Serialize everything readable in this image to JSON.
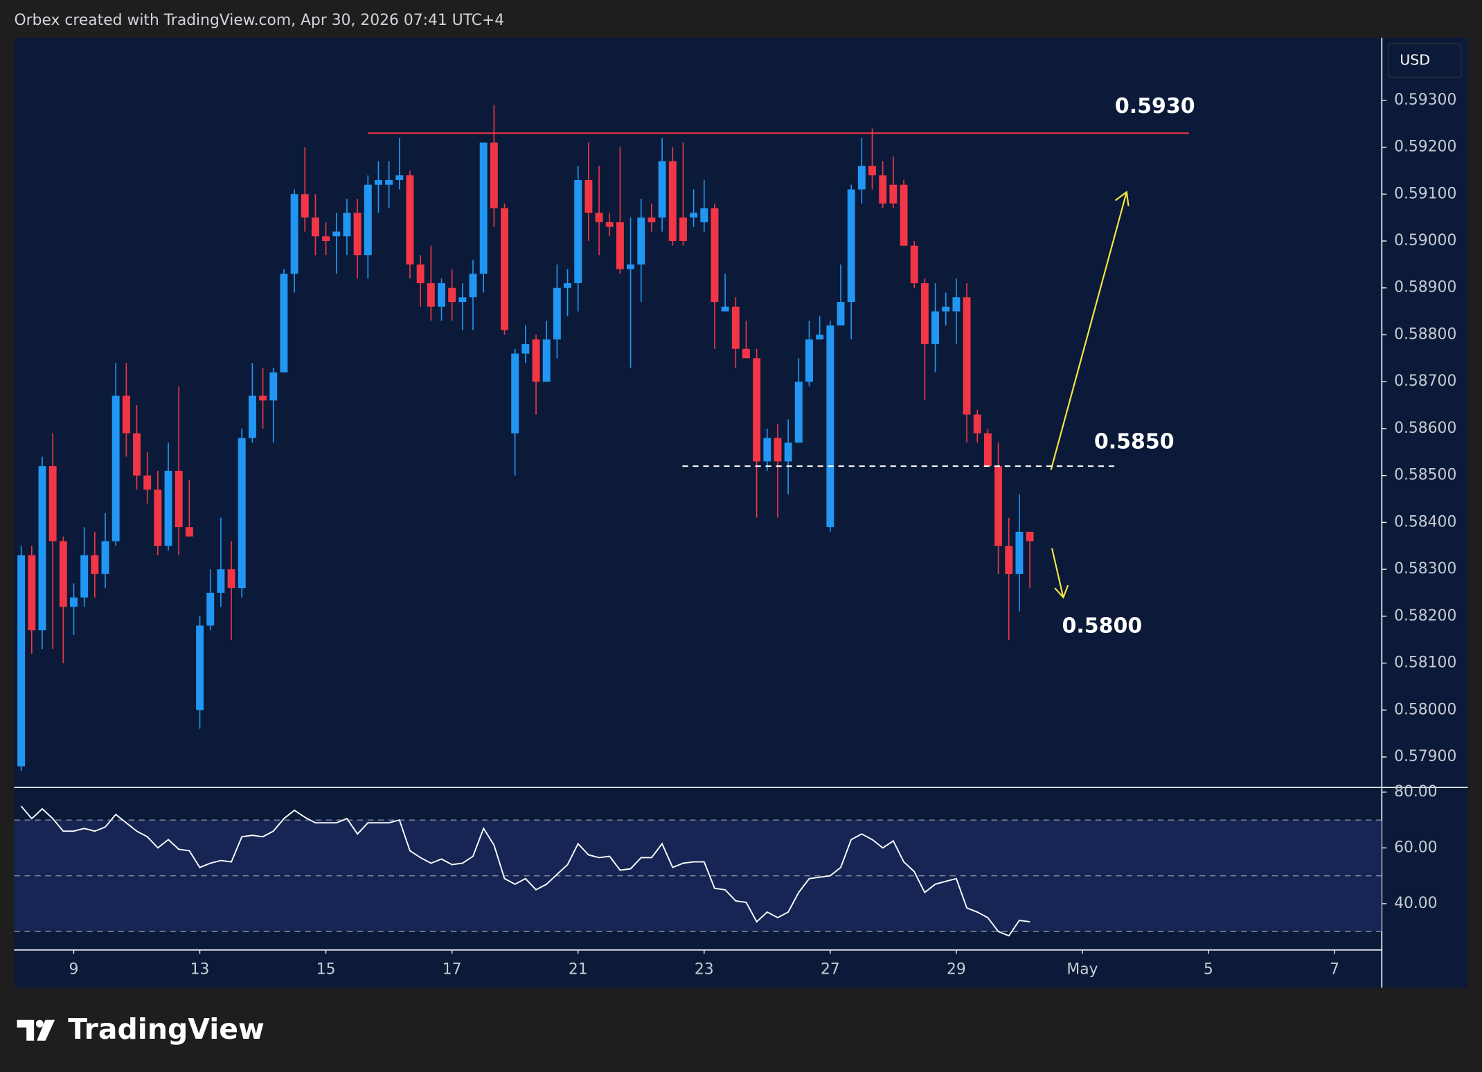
{
  "header": {
    "title": "Orbex created with TradingView.com, Apr 30, 2026 07:41 UTC+4",
    "currency": "USD"
  },
  "footer": {
    "logo": "TradingView"
  },
  "chart_data": [
    {
      "type": "candlestick",
      "up_color": "#2196f3",
      "down_color": "#f23645",
      "xlim": [
        -0.67,
        129.5
      ],
      "ylim": [
        0.57835,
        0.59433
      ],
      "xticks": [
        {
          "value": 5,
          "label": "9"
        },
        {
          "value": 17,
          "label": "13"
        },
        {
          "value": 29,
          "label": "15"
        },
        {
          "value": 41,
          "label": "17"
        },
        {
          "value": 53,
          "label": "21"
        },
        {
          "value": 65,
          "label": "23"
        },
        {
          "value": 77,
          "label": "27"
        },
        {
          "value": 89,
          "label": "29"
        },
        {
          "value": 101,
          "label": "May"
        },
        {
          "value": 113,
          "label": "5"
        },
        {
          "value": 125,
          "label": "7"
        }
      ],
      "yticks": [
        {
          "value": 0.579,
          "label": "0.57900"
        },
        {
          "value": 0.58,
          "label": "0.58000"
        },
        {
          "value": 0.581,
          "label": "0.58100"
        },
        {
          "value": 0.582,
          "label": "0.58200"
        },
        {
          "value": 0.583,
          "label": "0.58300"
        },
        {
          "value": 0.584,
          "label": "0.58400"
        },
        {
          "value": 0.585,
          "label": "0.58500"
        },
        {
          "value": 0.586,
          "label": "0.58600"
        },
        {
          "value": 0.587,
          "label": "0.58700"
        },
        {
          "value": 0.588,
          "label": "0.58800"
        },
        {
          "value": 0.589,
          "label": "0.58900"
        },
        {
          "value": 0.59,
          "label": "0.59000"
        },
        {
          "value": 0.591,
          "label": "0.59100"
        },
        {
          "value": 0.592,
          "label": "0.59200"
        },
        {
          "value": 0.593,
          "label": "0.59300"
        }
      ],
      "grid": false,
      "open": [
        0.5788,
        0.5833,
        0.5817,
        0.5852,
        0.5836,
        0.5822,
        0.5824,
        0.5833,
        0.5829,
        0.5836,
        0.5867,
        0.5859,
        0.585,
        0.5847,
        0.5835,
        0.5851,
        0.5839,
        0.58,
        0.5818,
        0.5825,
        0.583,
        0.5826,
        0.5858,
        0.5867,
        0.5866,
        0.5872,
        0.5893,
        0.591,
        0.5905,
        0.5901,
        0.5901,
        0.5901,
        0.5906,
        0.5897,
        0.5912,
        0.5912,
        0.5913,
        0.5914,
        0.5895,
        0.5891,
        0.5886,
        0.589,
        0.5887,
        0.5888,
        0.5893,
        0.5921,
        0.5907,
        0.5859,
        0.5876,
        0.5879,
        0.587,
        0.5879,
        0.589,
        0.5891,
        0.5913,
        0.5906,
        0.5904,
        0.5904,
        0.5894,
        0.5895,
        0.5905,
        0.5905,
        0.5917,
        0.5905,
        0.5905,
        0.5904,
        0.5907,
        0.5885,
        0.5886,
        0.5877,
        0.5875,
        0.5853,
        0.5858,
        0.5853,
        0.5857,
        0.587,
        0.5879,
        0.5839,
        0.5882,
        0.5887,
        0.5911,
        0.5916,
        0.5914,
        0.5912,
        0.5912,
        0.5899,
        0.5891,
        0.5878,
        0.5885,
        0.5885,
        0.5888,
        0.5863,
        0.5859,
        0.5852,
        0.5835,
        0.5829,
        0.5838
      ],
      "high": [
        0.5835,
        0.5835,
        0.5854,
        0.5859,
        0.5837,
        0.5827,
        0.5839,
        0.5838,
        0.5842,
        0.5874,
        0.5874,
        0.5865,
        0.5855,
        0.5851,
        0.5857,
        0.5869,
        0.5849,
        0.582,
        0.583,
        0.5841,
        0.5836,
        0.586,
        0.5874,
        0.5873,
        0.5873,
        0.5894,
        0.5911,
        0.592,
        0.591,
        0.5904,
        0.5906,
        0.5909,
        0.5909,
        0.5914,
        0.5917,
        0.5917,
        0.5922,
        0.5915,
        0.5897,
        0.5899,
        0.5892,
        0.5894,
        0.5891,
        0.5896,
        0.5921,
        0.5929,
        0.5908,
        0.5877,
        0.5882,
        0.588,
        0.5883,
        0.5895,
        0.5894,
        0.5916,
        0.5921,
        0.5916,
        0.5906,
        0.592,
        0.5905,
        0.5909,
        0.5908,
        0.5922,
        0.592,
        0.5921,
        0.5911,
        0.5913,
        0.5908,
        0.5893,
        0.5888,
        0.5883,
        0.5877,
        0.586,
        0.5861,
        0.5862,
        0.5875,
        0.5883,
        0.5884,
        0.5883,
        0.5895,
        0.5912,
        0.5922,
        0.5924,
        0.5917,
        0.5918,
        0.5913,
        0.59,
        0.5892,
        0.5891,
        0.5889,
        0.5892,
        0.5891,
        0.5864,
        0.586,
        0.5857,
        0.5841,
        0.5846,
        0.5838
      ],
      "low": [
        0.5787,
        0.5812,
        0.5813,
        0.5813,
        0.581,
        0.5816,
        0.5822,
        0.5824,
        0.5826,
        0.5835,
        0.5854,
        0.5847,
        0.5844,
        0.5833,
        0.5834,
        0.5833,
        0.5837,
        0.5796,
        0.5817,
        0.5822,
        0.5815,
        0.5824,
        0.5857,
        0.586,
        0.5857,
        0.5872,
        0.5889,
        0.5902,
        0.5897,
        0.5897,
        0.5893,
        0.5897,
        0.5892,
        0.5892,
        0.5906,
        0.5907,
        0.5911,
        0.5892,
        0.5886,
        0.5883,
        0.5883,
        0.5883,
        0.5881,
        0.5881,
        0.5889,
        0.5903,
        0.588,
        0.585,
        0.5874,
        0.5863,
        0.587,
        0.5875,
        0.5884,
        0.5885,
        0.59,
        0.5897,
        0.5901,
        0.5893,
        0.5873,
        0.5887,
        0.5902,
        0.5902,
        0.5899,
        0.5899,
        0.5903,
        0.5902,
        0.5877,
        0.5885,
        0.5873,
        0.5875,
        0.5841,
        0.5851,
        0.5841,
        0.5846,
        0.5857,
        0.5869,
        0.5879,
        0.5838,
        0.5882,
        0.5879,
        0.5908,
        0.5911,
        0.5907,
        0.5907,
        0.5899,
        0.589,
        0.5866,
        0.5872,
        0.5882,
        0.5878,
        0.5857,
        0.5857,
        0.5852,
        0.5829,
        0.5815,
        0.5821,
        0.5826
      ],
      "close": [
        0.5833,
        0.5817,
        0.5852,
        0.5836,
        0.5822,
        0.5824,
        0.5833,
        0.5829,
        0.5836,
        0.5867,
        0.5859,
        0.585,
        0.5847,
        0.5835,
        0.5851,
        0.5839,
        0.5837,
        0.5818,
        0.5825,
        0.583,
        0.5826,
        0.5858,
        0.5867,
        0.5866,
        0.5872,
        0.5893,
        0.591,
        0.5905,
        0.5901,
        0.59,
        0.5902,
        0.5906,
        0.5897,
        0.5912,
        0.5913,
        0.5913,
        0.5914,
        0.5895,
        0.5891,
        0.5886,
        0.5891,
        0.5887,
        0.5888,
        0.5893,
        0.5921,
        0.5907,
        0.5881,
        0.5876,
        0.5878,
        0.587,
        0.5879,
        0.589,
        0.5891,
        0.5913,
        0.5906,
        0.5904,
        0.5903,
        0.5894,
        0.5895,
        0.5905,
        0.5904,
        0.5917,
        0.59,
        0.59,
        0.5906,
        0.5907,
        0.5887,
        0.5886,
        0.5877,
        0.5875,
        0.5853,
        0.5858,
        0.5853,
        0.5857,
        0.587,
        0.5879,
        0.588,
        0.5882,
        0.5887,
        0.5911,
        0.5916,
        0.5914,
        0.5908,
        0.5908,
        0.5899,
        0.5891,
        0.5878,
        0.5885,
        0.5886,
        0.5888,
        0.5863,
        0.5859,
        0.5852,
        0.5835,
        0.5829,
        0.5838,
        0.5836
      ],
      "annotations": [
        {
          "text": "0.5930",
          "level": 0.5923,
          "color": "#f23645"
        },
        {
          "text": "0.5850",
          "level": 0.5852,
          "color": "#ffffff"
        },
        {
          "text": "0.5800"
        }
      ]
    },
    {
      "type": "line",
      "ylim": [
        23.4,
        81.7
      ],
      "yticks": [
        {
          "value": 80,
          "label": "80.00"
        },
        {
          "value": 60,
          "label": "60.00"
        },
        {
          "value": 40,
          "label": "40.00"
        }
      ],
      "bands": [
        70,
        50,
        30
      ],
      "color": "#ffffff",
      "values": [
        75,
        70.5,
        74,
        70.5,
        66,
        66,
        67,
        66,
        67.5,
        72,
        69,
        66,
        64,
        60,
        63,
        59.5,
        59,
        53,
        54.5,
        55.5,
        55,
        64,
        64.5,
        64,
        66,
        70.5,
        73.5,
        71,
        69,
        69,
        69,
        70.5,
        65,
        69,
        69,
        69,
        70,
        59,
        56.5,
        54.5,
        56,
        54,
        54.5,
        57,
        67,
        61,
        49,
        47,
        49,
        45,
        47,
        50.5,
        54,
        61.5,
        57.5,
        56.5,
        57,
        52,
        52.5,
        56.5,
        56.5,
        61.5,
        53,
        54.5,
        55,
        55,
        45.5,
        45,
        41,
        40.5,
        33.5,
        37,
        35,
        37,
        44,
        49,
        49.5,
        50,
        53,
        63,
        65,
        63,
        60,
        62.5,
        55,
        51.5,
        44,
        47,
        48,
        49,
        38.5,
        37,
        35,
        30,
        28.5,
        34,
        33.5
      ]
    }
  ]
}
